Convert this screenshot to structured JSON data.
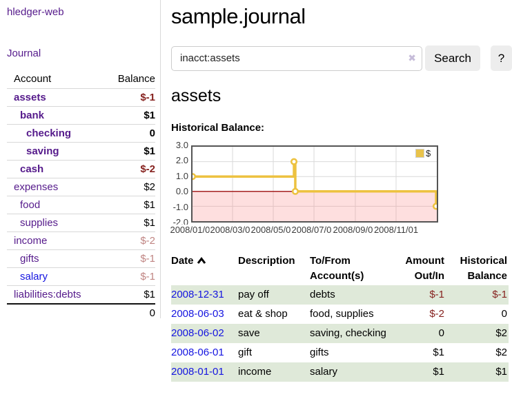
{
  "app": {
    "title": "hledger-web",
    "nav_journal": "Journal"
  },
  "sidebar": {
    "headers": [
      "Account",
      "Balance"
    ],
    "rows": [
      {
        "account": "assets",
        "balance": "$-1",
        "level": 0,
        "bold": true,
        "neg": "strong"
      },
      {
        "account": "bank",
        "balance": "$1",
        "level": 1,
        "bold": true,
        "neg": "none"
      },
      {
        "account": "checking",
        "balance": "0",
        "level": 2,
        "bold": true,
        "neg": "none"
      },
      {
        "account": "saving",
        "balance": "$1",
        "level": 2,
        "bold": true,
        "neg": "none"
      },
      {
        "account": "cash",
        "balance": "$-2",
        "level": 1,
        "bold": true,
        "neg": "strong"
      },
      {
        "account": "expenses",
        "balance": "$2",
        "level": 0,
        "bold": false,
        "neg": "none"
      },
      {
        "account": "food",
        "balance": "$1",
        "level": 1,
        "bold": false,
        "neg": "none"
      },
      {
        "account": "supplies",
        "balance": "$1",
        "level": 1,
        "bold": false,
        "neg": "none"
      },
      {
        "account": "income",
        "balance": "$-2",
        "level": 0,
        "bold": false,
        "neg": "faded"
      },
      {
        "account": "gifts",
        "balance": "$-1",
        "level": 1,
        "bold": false,
        "neg": "faded"
      },
      {
        "account": "salary",
        "balance": "$-1",
        "level": 1,
        "bold": false,
        "neg": "faded",
        "unvisited": true
      },
      {
        "account": "liabilities:debts",
        "balance": "$1",
        "level": 0,
        "bold": false,
        "neg": "none"
      }
    ],
    "total": "0"
  },
  "main": {
    "title": "sample.journal",
    "search": {
      "value": "inacct:assets",
      "clear_icon": "✖",
      "button": "Search",
      "help": "?"
    },
    "account_heading": "assets",
    "chart_label": "Historical Balance:"
  },
  "chart_data": {
    "type": "line",
    "step": true,
    "title": "Historical Balance",
    "legend_position": "top-right",
    "series": [
      {
        "name": "$",
        "color": "#edc240",
        "points": [
          {
            "date": "2008-01-01",
            "day": 0,
            "value": 1
          },
          {
            "date": "2008-06-01",
            "day": 152,
            "value": 2
          },
          {
            "date": "2008-06-03",
            "day": 154,
            "value": 0
          },
          {
            "date": "2008-12-31",
            "day": 365,
            "value": -1
          }
        ]
      }
    ],
    "x_ticks": [
      {
        "label": "2008/01/01",
        "day": 0
      },
      {
        "label": "2008/03/01",
        "day": 60
      },
      {
        "label": "2008/05/01",
        "day": 121
      },
      {
        "label": "2008/07/01",
        "day": 182
      },
      {
        "label": "2008/09/01",
        "day": 244
      },
      {
        "label": "2008/11/01",
        "day": 305
      }
    ],
    "y_ticks": [
      "3.0",
      "2.0",
      "1.0",
      "0.0",
      "-1.0",
      "-2.0"
    ],
    "ylim": [
      -2,
      3
    ],
    "x_max_day": 366,
    "colors": {
      "line": "#edc240",
      "marker_fill": "#ffffff",
      "zero_line": "#9c0b0b",
      "negative_fill": "rgba(250,140,140,0.28)",
      "grid": "#d9d9d9",
      "border": "#545454"
    }
  },
  "register": {
    "headers": [
      {
        "line1": "Date",
        "line2": "",
        "align": "left"
      },
      {
        "line1": "Description",
        "line2": "",
        "align": "left"
      },
      {
        "line1": "To/From",
        "line2": "Account(s)",
        "align": "left"
      },
      {
        "line1": "Amount",
        "line2": "Out/In",
        "align": "right"
      },
      {
        "line1": "Historical",
        "line2": "Balance",
        "align": "right"
      }
    ],
    "rows": [
      {
        "date": "2008-12-31",
        "description": "pay off",
        "accounts": "debts",
        "amount": "$-1",
        "balance": "$-1",
        "amount_neg": true,
        "balance_neg": true
      },
      {
        "date": "2008-06-03",
        "description": "eat & shop",
        "accounts": "food, supplies",
        "amount": "$-2",
        "balance": "0",
        "amount_neg": true,
        "balance_neg": false
      },
      {
        "date": "2008-06-02",
        "description": "save",
        "accounts": "saving, checking",
        "amount": "0",
        "balance": "$2",
        "amount_neg": false,
        "balance_neg": false
      },
      {
        "date": "2008-06-01",
        "description": "gift",
        "accounts": "gifts",
        "amount": "$1",
        "balance": "$2",
        "amount_neg": false,
        "balance_neg": false
      },
      {
        "date": "2008-01-01",
        "description": "income",
        "accounts": "salary",
        "amount": "$1",
        "balance": "$1",
        "amount_neg": false,
        "balance_neg": false
      }
    ]
  }
}
